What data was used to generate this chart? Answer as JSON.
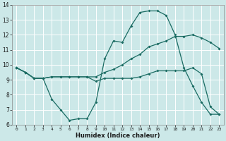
{
  "xlabel": "Humidex (Indice chaleur)",
  "bg_color": "#cce8e8",
  "line_color": "#1a6b62",
  "grid_color": "#b8d8d8",
  "xlim": [
    -0.5,
    23.5
  ],
  "ylim": [
    6,
    14
  ],
  "yticks": [
    6,
    7,
    8,
    9,
    10,
    11,
    12,
    13,
    14
  ],
  "xticks": [
    0,
    1,
    2,
    3,
    4,
    5,
    6,
    7,
    8,
    9,
    10,
    11,
    12,
    13,
    14,
    15,
    16,
    17,
    18,
    19,
    20,
    21,
    22,
    23
  ],
  "series1_x": [
    0,
    1,
    2,
    3,
    4,
    5,
    6,
    7,
    8,
    9,
    10,
    11,
    12,
    13,
    14,
    15,
    16,
    17,
    18,
    19,
    20,
    21,
    22,
    23
  ],
  "series1_y": [
    9.8,
    9.5,
    9.1,
    9.1,
    9.2,
    9.2,
    9.2,
    9.2,
    9.2,
    9.2,
    9.5,
    9.7,
    10.0,
    10.4,
    10.7,
    11.2,
    11.4,
    11.6,
    11.9,
    11.9,
    12.0,
    11.8,
    11.5,
    11.1
  ],
  "series2_x": [
    0,
    1,
    2,
    3,
    4,
    5,
    6,
    7,
    8,
    9,
    10,
    11,
    12,
    13,
    14,
    15,
    16,
    17,
    18,
    19,
    20,
    21,
    22,
    23
  ],
  "series2_y": [
    9.8,
    9.5,
    9.1,
    9.1,
    7.7,
    7.0,
    6.3,
    6.4,
    6.4,
    7.5,
    10.4,
    11.6,
    11.5,
    12.6,
    13.5,
    13.6,
    13.6,
    13.3,
    12.0,
    9.8,
    8.6,
    7.5,
    6.7,
    6.7
  ],
  "series3_x": [
    0,
    1,
    2,
    3,
    4,
    5,
    6,
    7,
    8,
    9,
    10,
    11,
    12,
    13,
    14,
    15,
    16,
    17,
    18,
    19,
    20,
    21,
    22,
    23
  ],
  "series3_y": [
    9.8,
    9.5,
    9.1,
    9.1,
    9.2,
    9.2,
    9.2,
    9.2,
    9.2,
    8.9,
    9.1,
    9.1,
    9.1,
    9.1,
    9.2,
    9.4,
    9.6,
    9.6,
    9.6,
    9.6,
    9.8,
    9.4,
    7.2,
    6.7
  ]
}
